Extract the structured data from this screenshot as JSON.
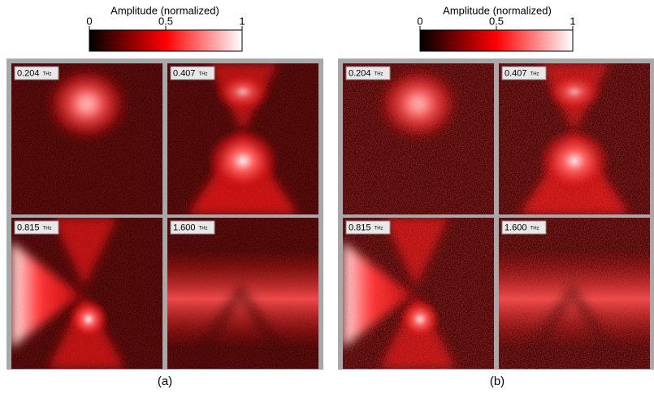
{
  "panels": [
    {
      "caption": "(a)",
      "colorbar": {
        "title": "Amplitude (normalized)",
        "ticks": [
          "0",
          "0.5",
          "1"
        ]
      },
      "images": [
        {
          "frequency": "0.204",
          "unit": "THz"
        },
        {
          "frequency": "0.407",
          "unit": "THz"
        },
        {
          "frequency": "0.815",
          "unit": "THz"
        },
        {
          "frequency": "1.600",
          "unit": "THz"
        }
      ]
    },
    {
      "caption": "(b)",
      "colorbar": {
        "title": "Amplitude (normalized)",
        "ticks": [
          "0",
          "0.5",
          "1"
        ]
      },
      "images": [
        {
          "frequency": "0.204",
          "unit": "THz"
        },
        {
          "frequency": "0.407",
          "unit": "THz"
        },
        {
          "frequency": "0.815",
          "unit": "THz"
        },
        {
          "frequency": "1.600",
          "unit": "THz"
        }
      ]
    }
  ]
}
